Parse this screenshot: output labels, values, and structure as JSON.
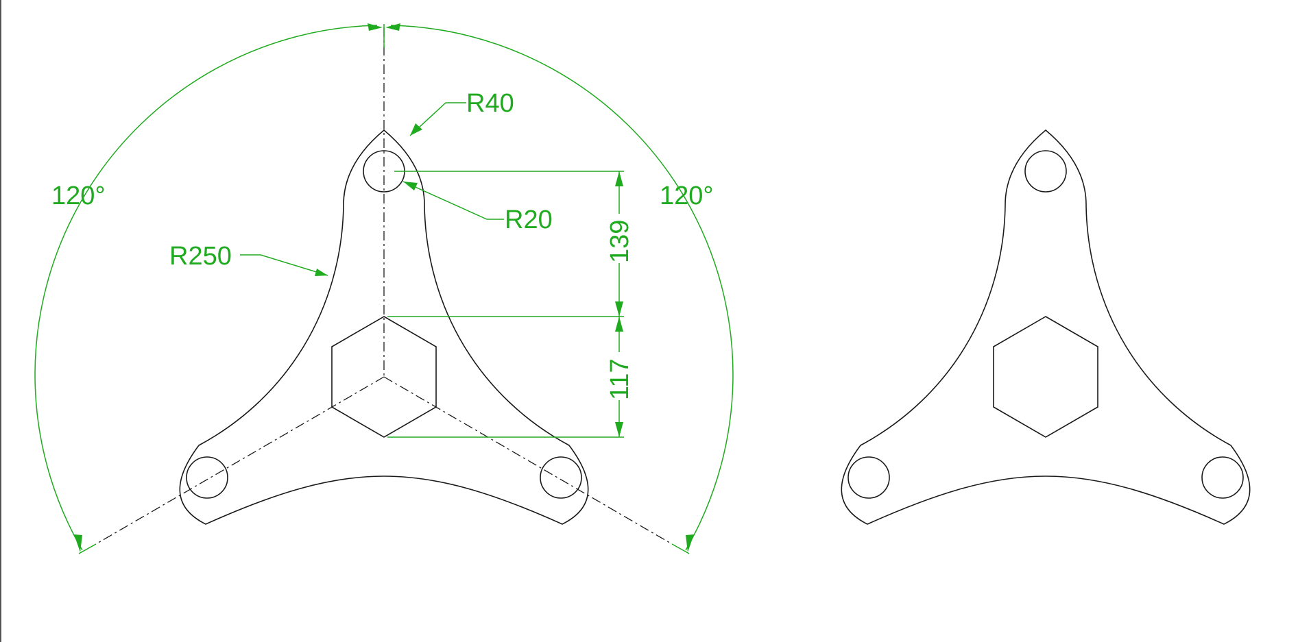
{
  "drawing": {
    "colors": {
      "part_line": "#1a1a1a",
      "dimension_line": "#1faa1f",
      "background": "#ffffff"
    },
    "dimensions": {
      "angle_left": "120°",
      "angle_right": "120°",
      "radius_outer_lobe": "R40",
      "radius_hole": "R20",
      "radius_arm": "R250",
      "vertical_upper": "139",
      "vertical_lower": "117"
    }
  }
}
